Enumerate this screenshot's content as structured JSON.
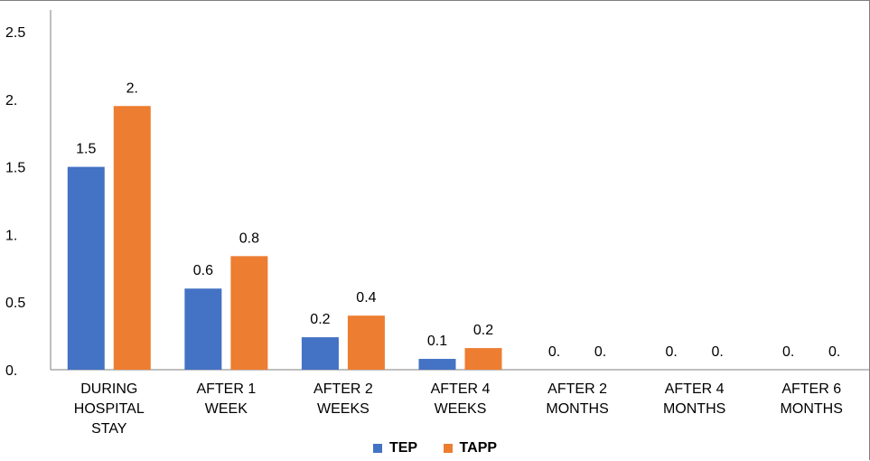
{
  "chart_data": {
    "type": "bar",
    "categories": [
      [
        "DURING",
        "HOSPITAL",
        "STAY"
      ],
      [
        "AFTER 1",
        "WEEK"
      ],
      [
        "AFTER 2",
        "WEEKS"
      ],
      [
        "AFTER 4",
        "WEEKS"
      ],
      [
        "AFTER 2",
        "MONTHS"
      ],
      [
        "AFTER 4",
        "MONTHS"
      ],
      [
        "AFTER 6",
        "MONTHS"
      ]
    ],
    "series": [
      {
        "name": "TEP",
        "color": "#4472c4",
        "values": [
          1.5,
          0.6,
          0.24,
          0.08,
          0,
          0,
          0
        ],
        "labels": [
          "1.5",
          "0.6",
          "0.2",
          "0.1",
          "0.",
          "0.",
          "0."
        ]
      },
      {
        "name": "TAPP",
        "color": "#ed7d31",
        "values": [
          1.95,
          0.84,
          0.4,
          0.16,
          0,
          0,
          0
        ],
        "labels": [
          "2.",
          "0.8",
          "0.4",
          "0.2",
          "0.",
          "0.",
          "0."
        ]
      }
    ],
    "ylim": [
      0,
      2.5
    ],
    "yticks": [
      "0.",
      "0.5",
      "1.",
      "1.5",
      "2.",
      "2.5"
    ],
    "grid": false,
    "legend_position": "bottom",
    "title": "",
    "xlabel": "",
    "ylabel": ""
  }
}
